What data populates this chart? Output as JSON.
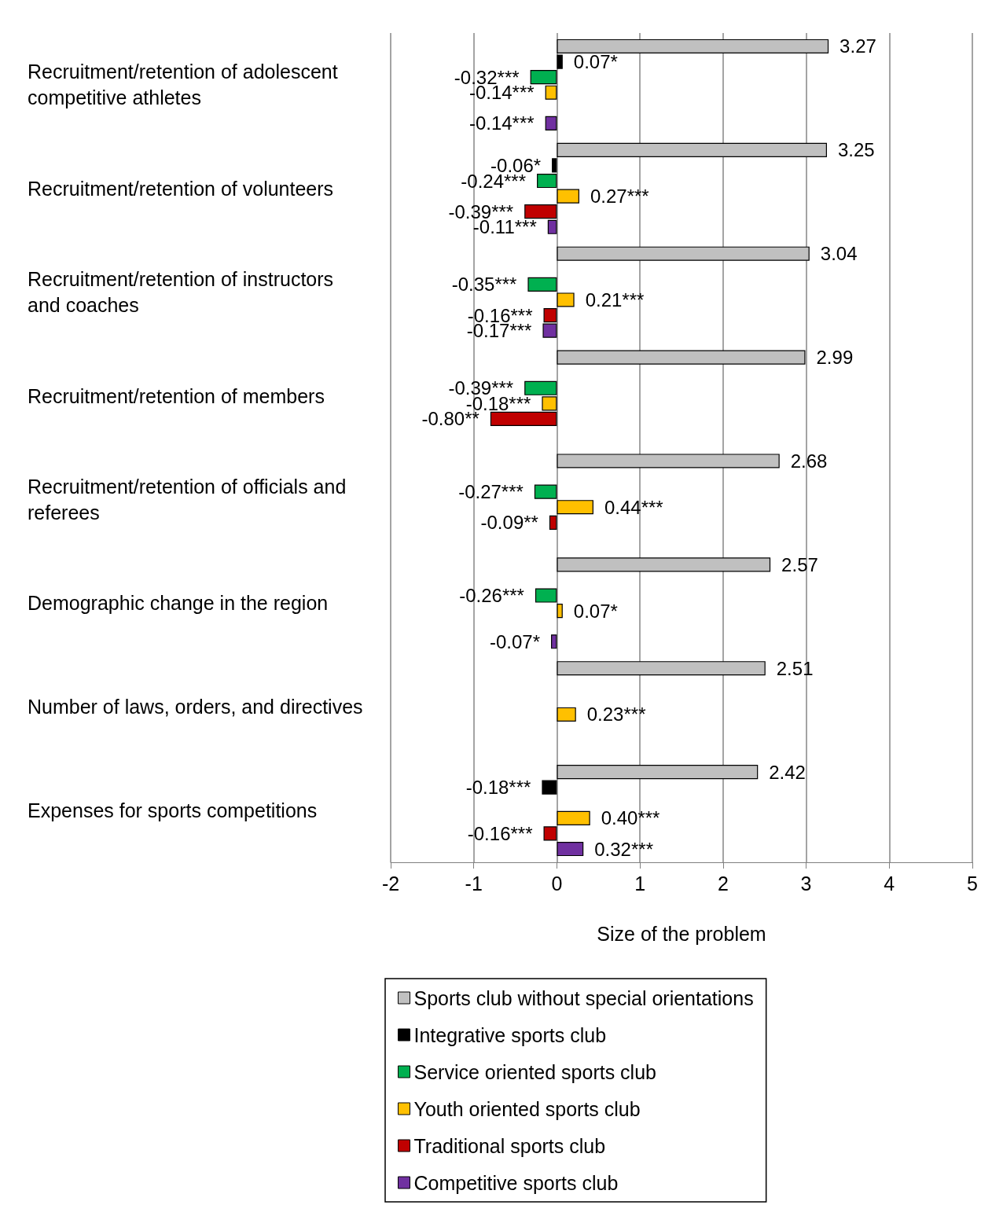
{
  "chart_data": {
    "type": "bar",
    "orientation": "horizontal",
    "xlabel": "Size of the problem",
    "categories": [
      "Recruitment/retention of adolescent competitive athletes",
      "Recruitment/retention of volunteers",
      "Recruitment/retention of instructors and coaches",
      "Recruitment/retention of members",
      "Recruitment/retention of officials and referees",
      "Demographic change in the region",
      "Number of laws, orders, and directives",
      "Expenses for sports competitions"
    ],
    "series": [
      {
        "name": "Sports club without special orientations",
        "color": "#c0c0c0",
        "values": [
          3.27,
          3.25,
          3.04,
          2.99,
          2.68,
          2.57,
          2.51,
          2.42
        ],
        "value_labels": [
          "3.27",
          "3.25",
          "3.04",
          "2.99",
          "2.68",
          "2.57",
          "2.51",
          "2.42"
        ]
      },
      {
        "name": "Integrative sports club",
        "color": "#000000",
        "values": [
          0.07,
          -0.06,
          null,
          null,
          null,
          null,
          null,
          -0.18
        ],
        "value_labels": [
          "0.07*",
          "-0.06*",
          null,
          null,
          null,
          null,
          null,
          "-0.18***"
        ]
      },
      {
        "name": "Service oriented sports club",
        "color": "#00b050",
        "values": [
          -0.32,
          -0.24,
          -0.35,
          -0.39,
          -0.27,
          -0.26,
          null,
          null
        ],
        "value_labels": [
          "-0.32***",
          "-0.24***",
          "-0.35***",
          "-0.39***",
          "-0.27***",
          "-0.26***",
          null,
          null
        ]
      },
      {
        "name": "Youth oriented sports club",
        "color": "#ffc000",
        "values": [
          -0.14,
          0.27,
          0.21,
          -0.18,
          0.44,
          0.07,
          0.23,
          0.4
        ],
        "value_labels": [
          "-0.14***",
          "0.27***",
          "0.21***",
          "-0.18***",
          "0.44***",
          "0.07*",
          "0.23***",
          "0.40***"
        ]
      },
      {
        "name": "Traditional sports club",
        "color": "#c00000",
        "values": [
          null,
          -0.39,
          -0.16,
          -0.8,
          -0.09,
          null,
          null,
          -0.16
        ],
        "value_labels": [
          null,
          "-0.39***",
          "-0.16***",
          "-0.80**",
          "-0.09**",
          null,
          null,
          "-0.16***"
        ]
      },
      {
        "name": "Competitive sports club",
        "color": "#7030a0",
        "values": [
          -0.14,
          -0.11,
          -0.17,
          null,
          null,
          -0.07,
          null,
          0.32
        ],
        "value_labels": [
          "-0.14***",
          "-0.11***",
          "-0.17***",
          null,
          null,
          "-0.07*",
          null,
          "0.32***"
        ]
      }
    ],
    "xlim": [
      -2,
      5
    ],
    "xticks": [
      -2,
      -1,
      0,
      1,
      2,
      3,
      4,
      5
    ],
    "grid": "x",
    "legend": "bottom"
  }
}
